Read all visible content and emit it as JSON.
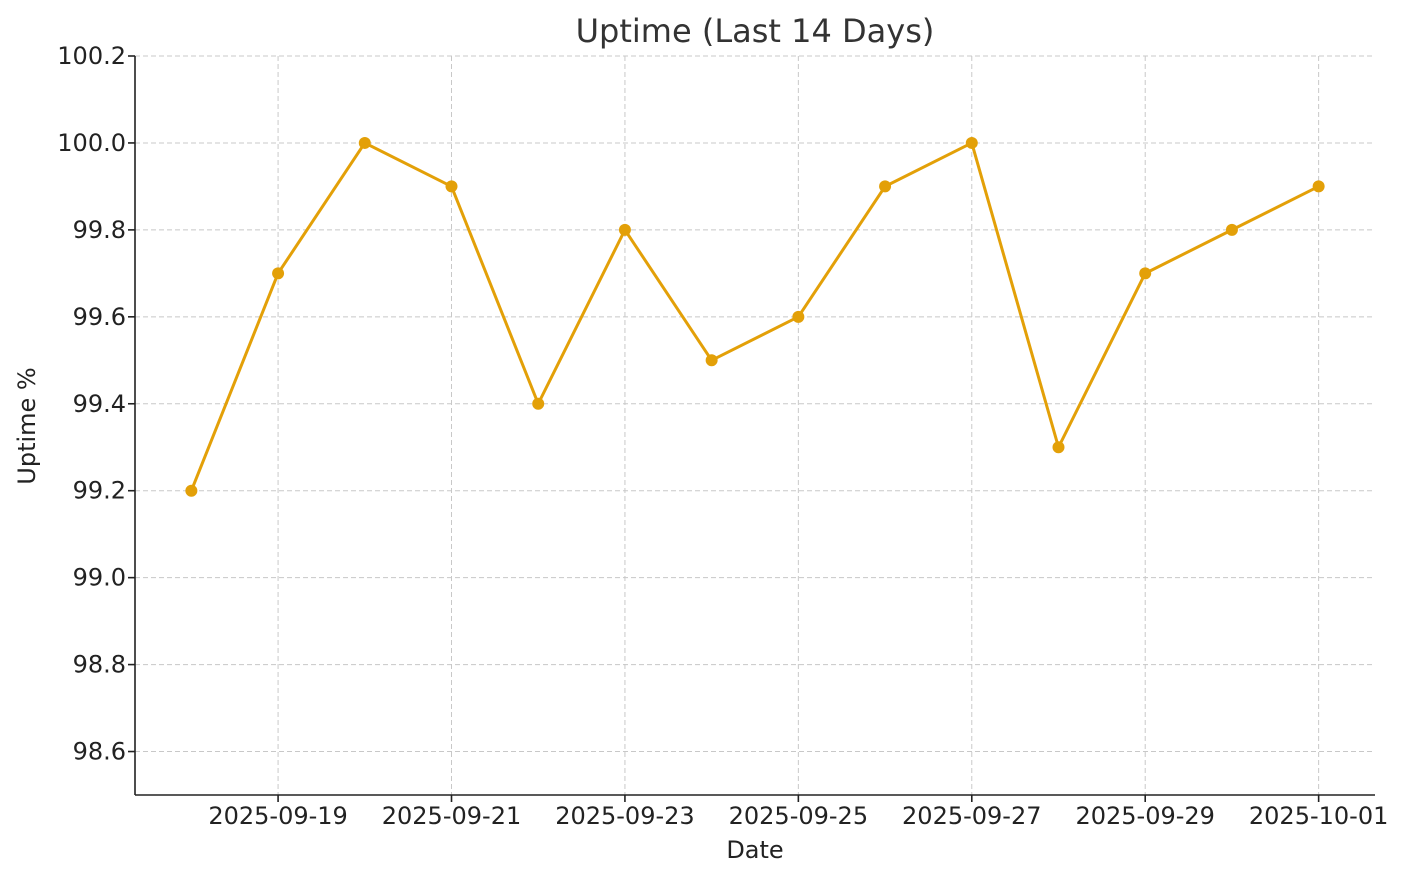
{
  "chart_data": {
    "type": "line",
    "title": "Uptime (Last 14 Days)",
    "xlabel": "Date",
    "ylabel": "Uptime %",
    "x": [
      "2025-09-18",
      "2025-09-19",
      "2025-09-20",
      "2025-09-21",
      "2025-09-22",
      "2025-09-23",
      "2025-09-24",
      "2025-09-25",
      "2025-09-26",
      "2025-09-27",
      "2025-09-28",
      "2025-09-29",
      "2025-09-30",
      "2025-10-01"
    ],
    "series": [
      {
        "values": [
          99.2,
          99.7,
          100.0,
          99.9,
          99.4,
          99.8,
          99.5,
          99.6,
          99.9,
          100.0,
          99.3,
          99.7,
          99.8,
          99.9
        ]
      }
    ],
    "ylim": [
      98.5,
      100.2
    ],
    "yticks": [
      "98.6",
      "98.8",
      "99.0",
      "99.2",
      "99.4",
      "99.6",
      "99.8",
      "100.0",
      "100.2"
    ],
    "xticks": [
      "2025-09-19",
      "2025-09-21",
      "2025-09-23",
      "2025-09-25",
      "2025-09-27",
      "2025-09-29",
      "2025-10-01"
    ],
    "grid": true,
    "line_color": "#E3A008"
  }
}
